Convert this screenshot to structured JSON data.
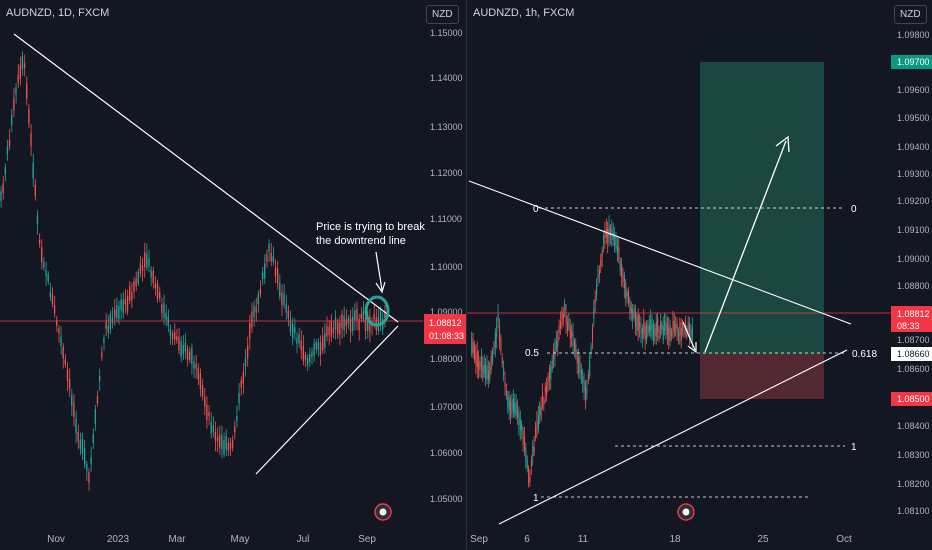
{
  "left_chart": {
    "title": "AUDNZD, 1D, FXCM",
    "currency": "NZD",
    "price_axis": [
      "1.15000",
      "1.14000",
      "1.13000",
      "1.12000",
      "1.11000",
      "1.10000",
      "1.09000",
      "1.08000",
      "1.07000",
      "1.06000",
      "1.05000"
    ],
    "time_axis": [
      "Nov",
      "2023",
      "Mar",
      "May",
      "Jul",
      "Sep"
    ],
    "current_price": "1.08812",
    "countdown": "01:08:33",
    "annotation": [
      "Price is trying to break",
      "the downtrend line"
    ],
    "colors": {
      "up": "#26a69a",
      "down": "#ef5350",
      "price_line": "#f23645",
      "circle": "#26a69a"
    }
  },
  "right_chart": {
    "title": "AUDNZD, 1h, FXCM",
    "currency": "NZD",
    "price_axis": [
      "1.09800",
      "1.09600",
      "1.09500",
      "1.09400",
      "1.09300",
      "1.09200",
      "1.09100",
      "1.09000",
      "1.08800",
      "1.08700",
      "1.08600",
      "1.08400",
      "1.08300",
      "1.08200",
      "1.08100"
    ],
    "time_axis": [
      "Sep",
      "6",
      "11",
      "18",
      "25",
      "Oct"
    ],
    "target_price": "1.09700",
    "current_price": "1.08812",
    "countdown": "08:33",
    "entry_price": "1.08660",
    "stop_price": "1.08500",
    "fib_left": {
      "zero": "0",
      "half": "0.5",
      "one": "1"
    },
    "fib_right": {
      "zero": "0",
      "golden": "0.618",
      "one": "1"
    },
    "colors": {
      "target_zone": "#1e4f45",
      "stop_zone": "#5a2a33",
      "target_badge": "#089981",
      "stop_badge": "#f23645"
    }
  }
}
